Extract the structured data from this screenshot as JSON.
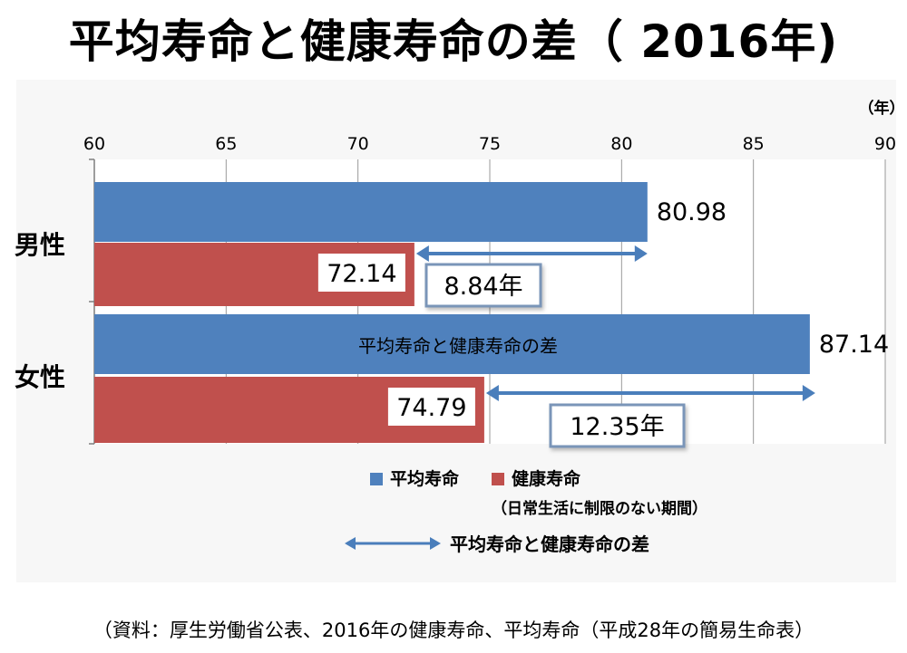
{
  "title": "平均寿命と健康寿命の差（ 2016年)",
  "unit_label": "（年）",
  "footer": "（資料：厚生労働省公表、2016年の健康寿命、平均寿命（平成28年の簡易生命表）",
  "chart_data": {
    "type": "bar",
    "orientation": "horizontal",
    "title": "平均寿命と健康寿命の差（ 2016年)",
    "xlim": [
      60,
      90
    ],
    "ticks": [
      60,
      65,
      70,
      75,
      80,
      85,
      90
    ],
    "categories": [
      "男性",
      "女性"
    ],
    "series": [
      {
        "name": "平均寿命",
        "color": "#4f81bd",
        "values": [
          80.98,
          87.14
        ],
        "labels": [
          "80.98",
          "87.14"
        ]
      },
      {
        "name": "健康寿命",
        "color": "#c0504d",
        "values": [
          72.14,
          74.79
        ],
        "labels": [
          "72.14",
          "74.79"
        ]
      }
    ],
    "gaps": [
      {
        "label": "8.84年",
        "value": 8.84
      },
      {
        "label": "12.35年",
        "value": 12.35
      }
    ],
    "annotation": "平均寿命と健康寿命の差",
    "legend": {
      "items": [
        "平均寿命",
        "健康寿命"
      ],
      "note": "（日常生活に制限のない期間）",
      "arrow_label": "平均寿命と健康寿命の差"
    },
    "colors": {
      "arrow": "#4a7ebb",
      "grid": "#9a9a9a",
      "panel_bg": "#f2f2f2"
    }
  }
}
